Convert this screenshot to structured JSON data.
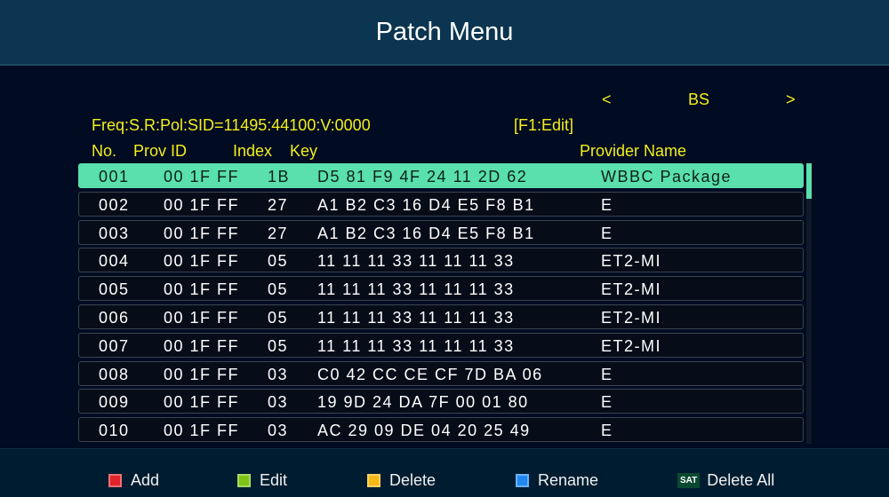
{
  "title": "Patch Menu",
  "satellite": {
    "prev": "<",
    "name": "BS",
    "next": ">"
  },
  "info": "Freq:S.R:Pol:SID=11495:44100:V:0000",
  "hint": "[F1:Edit]",
  "columns": [
    "No.",
    "Prov ID",
    "Index",
    "Key",
    "Provider Name"
  ],
  "rows": [
    [
      "001",
      "00 1F FF",
      "1B",
      "D5 81 F9 4F 24 11 2D 62",
      "WBBC Package"
    ],
    [
      "002",
      "00 1F FF",
      "27",
      "A1 B2 C3 16 D4 E5 F8 B1",
      "E"
    ],
    [
      "003",
      "00 1F FF",
      "27",
      "A1 B2 C3 16 D4 E5 F8 B1",
      "E"
    ],
    [
      "004",
      "00 1F FF",
      "05",
      "11 11 11 33 11 11 11 33",
      "ET2-MI"
    ],
    [
      "005",
      "00 1F FF",
      "05",
      "11 11 11 33 11 11 11 33",
      "ET2-MI"
    ],
    [
      "006",
      "00 1F FF",
      "05",
      "11 11 11 33 11 11 11 33",
      "ET2-MI"
    ],
    [
      "007",
      "00 1F FF",
      "05",
      "11 11 11 33 11 11 11 33",
      "ET2-MI"
    ],
    [
      "008",
      "00 1F FF",
      "03",
      "C0 42 CC CE CF 7D BA 06",
      "E"
    ],
    [
      "009",
      "00 1F FF",
      "03",
      "19 9D 24 DA 7F 00 01 80",
      "E"
    ],
    [
      "010",
      "00 1F FF",
      "03",
      "AC 29 09 DE 04 20 25 49",
      "E"
    ]
  ],
  "selected_row": 0,
  "footer": [
    {
      "label": "Add",
      "icon": "red-key",
      "color": "#e0242c"
    },
    {
      "label": "Edit",
      "icon": "green-key",
      "color": "#7cc416"
    },
    {
      "label": "Delete",
      "icon": "yellow-key",
      "color": "#f5b814"
    },
    {
      "label": "Rename",
      "icon": "blue-key",
      "color": "#2088f0"
    },
    {
      "label": "Delete All",
      "icon": "sat-key",
      "key_text": "SAT"
    }
  ]
}
